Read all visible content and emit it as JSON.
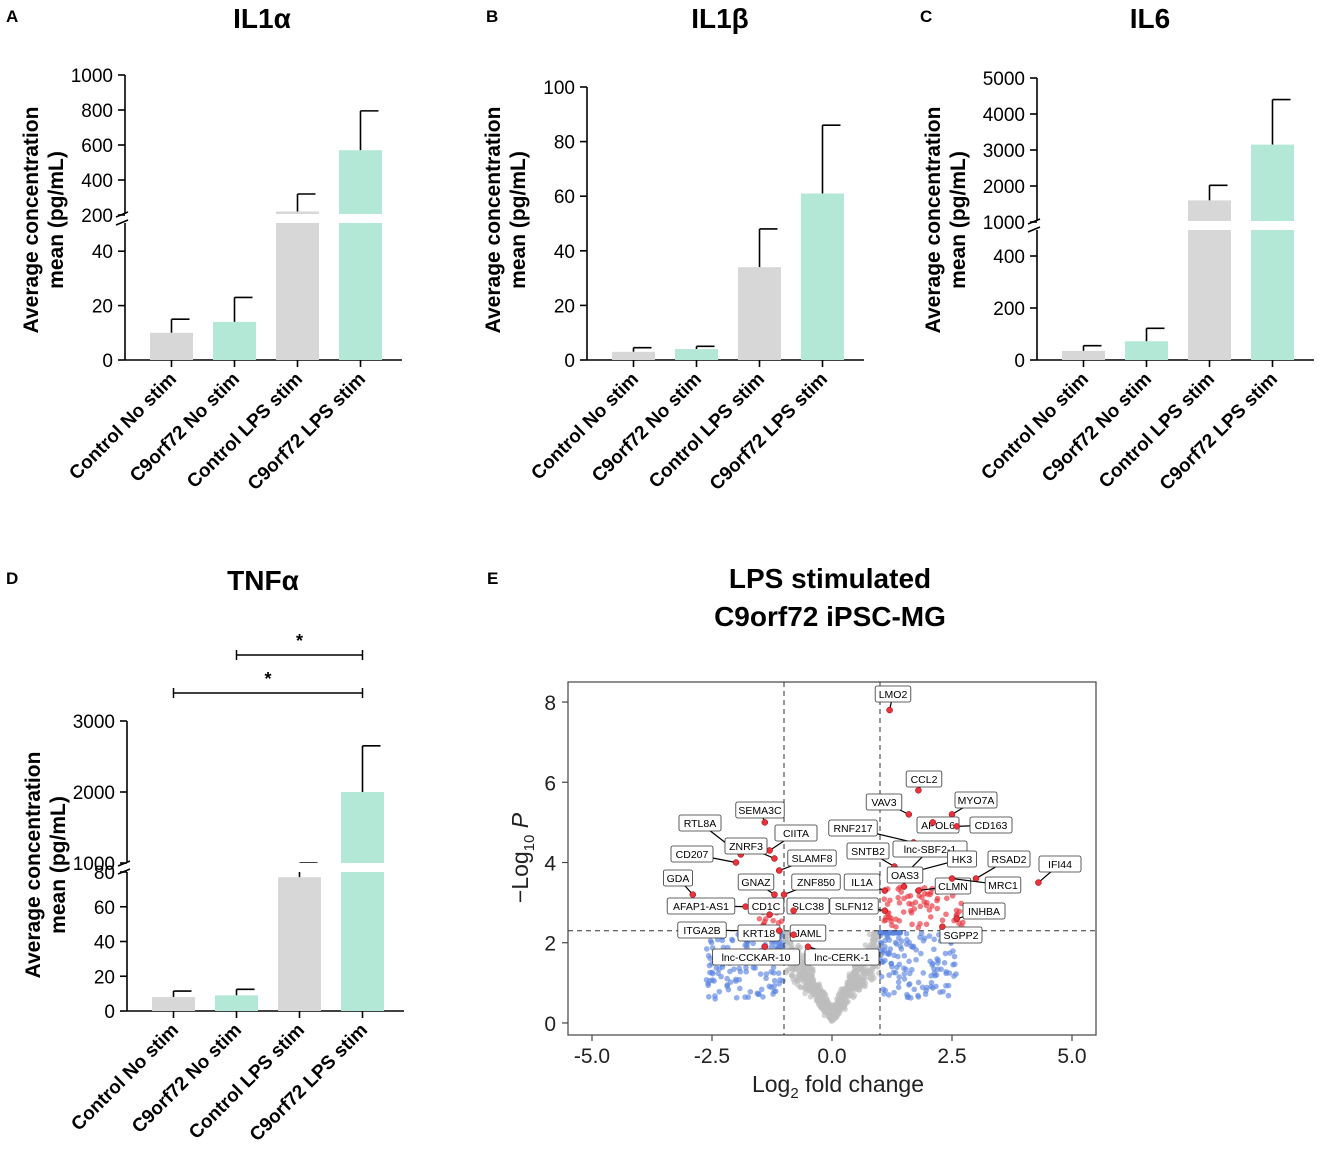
{
  "chart_data": [
    {
      "type": "bar",
      "panel": "A",
      "title": "IL1α",
      "ylabel_lines": [
        "Average concentration",
        "mean (pg/mL)"
      ],
      "categories": [
        "Control No stim",
        "C9orf72 No stim",
        "Control LPS stim",
        "C9orf72 LPS stim"
      ],
      "values": [
        10,
        14,
        220,
        570
      ],
      "errors": [
        5,
        9,
        100,
        225
      ],
      "bar_colors": [
        "#d7d7d7",
        "#b3e8d6",
        "#d7d7d7",
        "#b3e8d6"
      ],
      "ylim": [
        0,
        1000
      ],
      "axis_break": {
        "lower_top": 50,
        "upper_bottom": 200
      },
      "lower_ticks": [
        "0",
        "20",
        "40"
      ],
      "upper_ticks": [
        "200",
        "400",
        "600",
        "800",
        "1000"
      ]
    },
    {
      "type": "bar",
      "panel": "B",
      "title": "IL1β",
      "ylabel_lines": [
        "Average concentration",
        "mean (pg/mL)"
      ],
      "categories": [
        "Control No stim",
        "C9orf72 No stim",
        "Control LPS stim",
        "C9orf72 LPS stim"
      ],
      "values": [
        3,
        4,
        34,
        61
      ],
      "errors": [
        1.5,
        1,
        14,
        25
      ],
      "bar_colors": [
        "#d7d7d7",
        "#b3e8d6",
        "#d7d7d7",
        "#b3e8d6"
      ],
      "ylim": [
        0,
        100
      ],
      "ticks": [
        "0",
        "20",
        "40",
        "60",
        "80",
        "100"
      ]
    },
    {
      "type": "bar",
      "panel": "C",
      "title": "IL6",
      "ylabel_lines": [
        "Average concentration",
        "mean (pg/mL)"
      ],
      "categories": [
        "Control No stim",
        "C9orf72 No stim",
        "Control LPS stim",
        "C9orf72 LPS stim"
      ],
      "values": [
        35,
        72,
        1600,
        3150
      ],
      "errors": [
        20,
        50,
        420,
        1250
      ],
      "bar_colors": [
        "#d7d7d7",
        "#b3e8d6",
        "#d7d7d7",
        "#b3e8d6"
      ],
      "ylim": [
        0,
        5000
      ],
      "axis_break": {
        "lower_top": 500,
        "upper_bottom": 1000
      },
      "lower_ticks": [
        "0",
        "200",
        "400"
      ],
      "upper_ticks": [
        "1000",
        "2000",
        "3000",
        "4000",
        "5000"
      ]
    },
    {
      "type": "bar",
      "panel": "D",
      "title": "TNFα",
      "ylabel_lines": [
        "Average concentration",
        "mean (pg/mL)"
      ],
      "categories": [
        "Control No stim",
        "C9orf72 No stim",
        "Control LPS stim",
        "C9orf72 LPS stim"
      ],
      "values": [
        8,
        9,
        800,
        2000
      ],
      "errors": [
        3.5,
        3.5,
        200,
        650
      ],
      "bar_colors": [
        "#d7d7d7",
        "#b3e8d6",
        "#d7d7d7",
        "#b3e8d6"
      ],
      "ylim": [
        0,
        3000
      ],
      "axis_break": {
        "lower_top": 80,
        "upper_bottom": 1000
      },
      "lower_ticks": [
        "0",
        "20",
        "40",
        "60",
        "80"
      ],
      "upper_ticks": [
        "1000",
        "2000",
        "3000"
      ],
      "significance": [
        {
          "from": "C9orf72 No stim",
          "to": "C9orf72 LPS stim",
          "label": "*"
        },
        {
          "from": "Control No stim",
          "to": "C9orf72 LPS stim",
          "label": "*"
        }
      ]
    },
    {
      "type": "scatter",
      "panel": "E",
      "title_lines": [
        "LPS stimulated",
        "C9orf72 iPSC-MG"
      ],
      "xlabel": "Log2 fold change",
      "ylabel": "−Log10 P",
      "xlim": [
        -5.5,
        5.5
      ],
      "ylim": [
        -0.3,
        8.5
      ],
      "xticks": [
        "-5.0",
        "-2.5",
        "0.0",
        "2.5",
        "5.0"
      ],
      "yticks": [
        "0",
        "2",
        "4",
        "6",
        "8"
      ],
      "fc_threshold": [
        -1,
        1
      ],
      "p_threshold": 2.3,
      "colors": {
        "ns": "#bdbdbd",
        "fc": "#5b84e0",
        "sig": "#e8323c"
      },
      "labeled_genes": [
        {
          "gene": "LMO2",
          "x": 1.2,
          "y": 7.8
        },
        {
          "gene": "CCL2",
          "x": 1.8,
          "y": 5.8
        },
        {
          "gene": "MYO7A",
          "x": 2.5,
          "y": 5.2
        },
        {
          "gene": "VAV3",
          "x": 1.6,
          "y": 5.2
        },
        {
          "gene": "APOL6",
          "x": 2.1,
          "y": 5.0
        },
        {
          "gene": "CD163",
          "x": 2.6,
          "y": 4.9
        },
        {
          "gene": "RNF217",
          "x": 1.7,
          "y": 4.5
        },
        {
          "gene": "SNTB2",
          "x": 1.3,
          "y": 3.9
        },
        {
          "gene": "lnc-SBF2-1",
          "x": 1.6,
          "y": 3.8
        },
        {
          "gene": "HK3",
          "x": 1.8,
          "y": 3.8
        },
        {
          "gene": "RSAD2",
          "x": 3.0,
          "y": 3.6
        },
        {
          "gene": "IFI44",
          "x": 4.3,
          "y": 3.5
        },
        {
          "gene": "OAS3",
          "x": 1.5,
          "y": 3.4
        },
        {
          "gene": "CLMN",
          "x": 1.8,
          "y": 3.3
        },
        {
          "gene": "MRC1",
          "x": 2.5,
          "y": 3.6
        },
        {
          "gene": "IL1A",
          "x": 1.1,
          "y": 3.3
        },
        {
          "gene": "INHBA",
          "x": 2.6,
          "y": 2.6
        },
        {
          "gene": "SGPP2",
          "x": 2.3,
          "y": 2.4
        },
        {
          "gene": "SEMA3C",
          "x": -1.4,
          "y": 5.0
        },
        {
          "gene": "RTL8A",
          "x": -1.9,
          "y": 4.2
        },
        {
          "gene": "CIITA",
          "x": -1.3,
          "y": 4.3
        },
        {
          "gene": "ZNRF3",
          "x": -1.2,
          "y": 4.1
        },
        {
          "gene": "CD207",
          "x": -2.0,
          "y": 4.0
        },
        {
          "gene": "SLAMF8",
          "x": -1.1,
          "y": 3.8
        },
        {
          "gene": "GDA",
          "x": -2.9,
          "y": 3.2
        },
        {
          "gene": "GNAZ",
          "x": -1.2,
          "y": 3.2
        },
        {
          "gene": "ZNF850",
          "x": -1.0,
          "y": 3.2
        },
        {
          "gene": "AFAP1-AS1",
          "x": -1.8,
          "y": 2.9
        },
        {
          "gene": "CD1C",
          "x": -1.3,
          "y": 2.7
        },
        {
          "gene": "SLC38",
          "x": -0.8,
          "y": 2.8
        },
        {
          "gene": "SLFN12",
          "x": 1.1,
          "y": 2.8
        },
        {
          "gene": "ITGA2B",
          "x": -1.9,
          "y": 2.3
        },
        {
          "gene": "KRT18",
          "x": -1.1,
          "y": 2.3
        },
        {
          "gene": "JAML",
          "x": -0.8,
          "y": 2.2
        },
        {
          "gene": "lnc-CCKAR-10",
          "x": -1.4,
          "y": 1.9
        },
        {
          "gene": "lnc-CERK-1",
          "x": -0.5,
          "y": 1.9
        }
      ]
    }
  ]
}
